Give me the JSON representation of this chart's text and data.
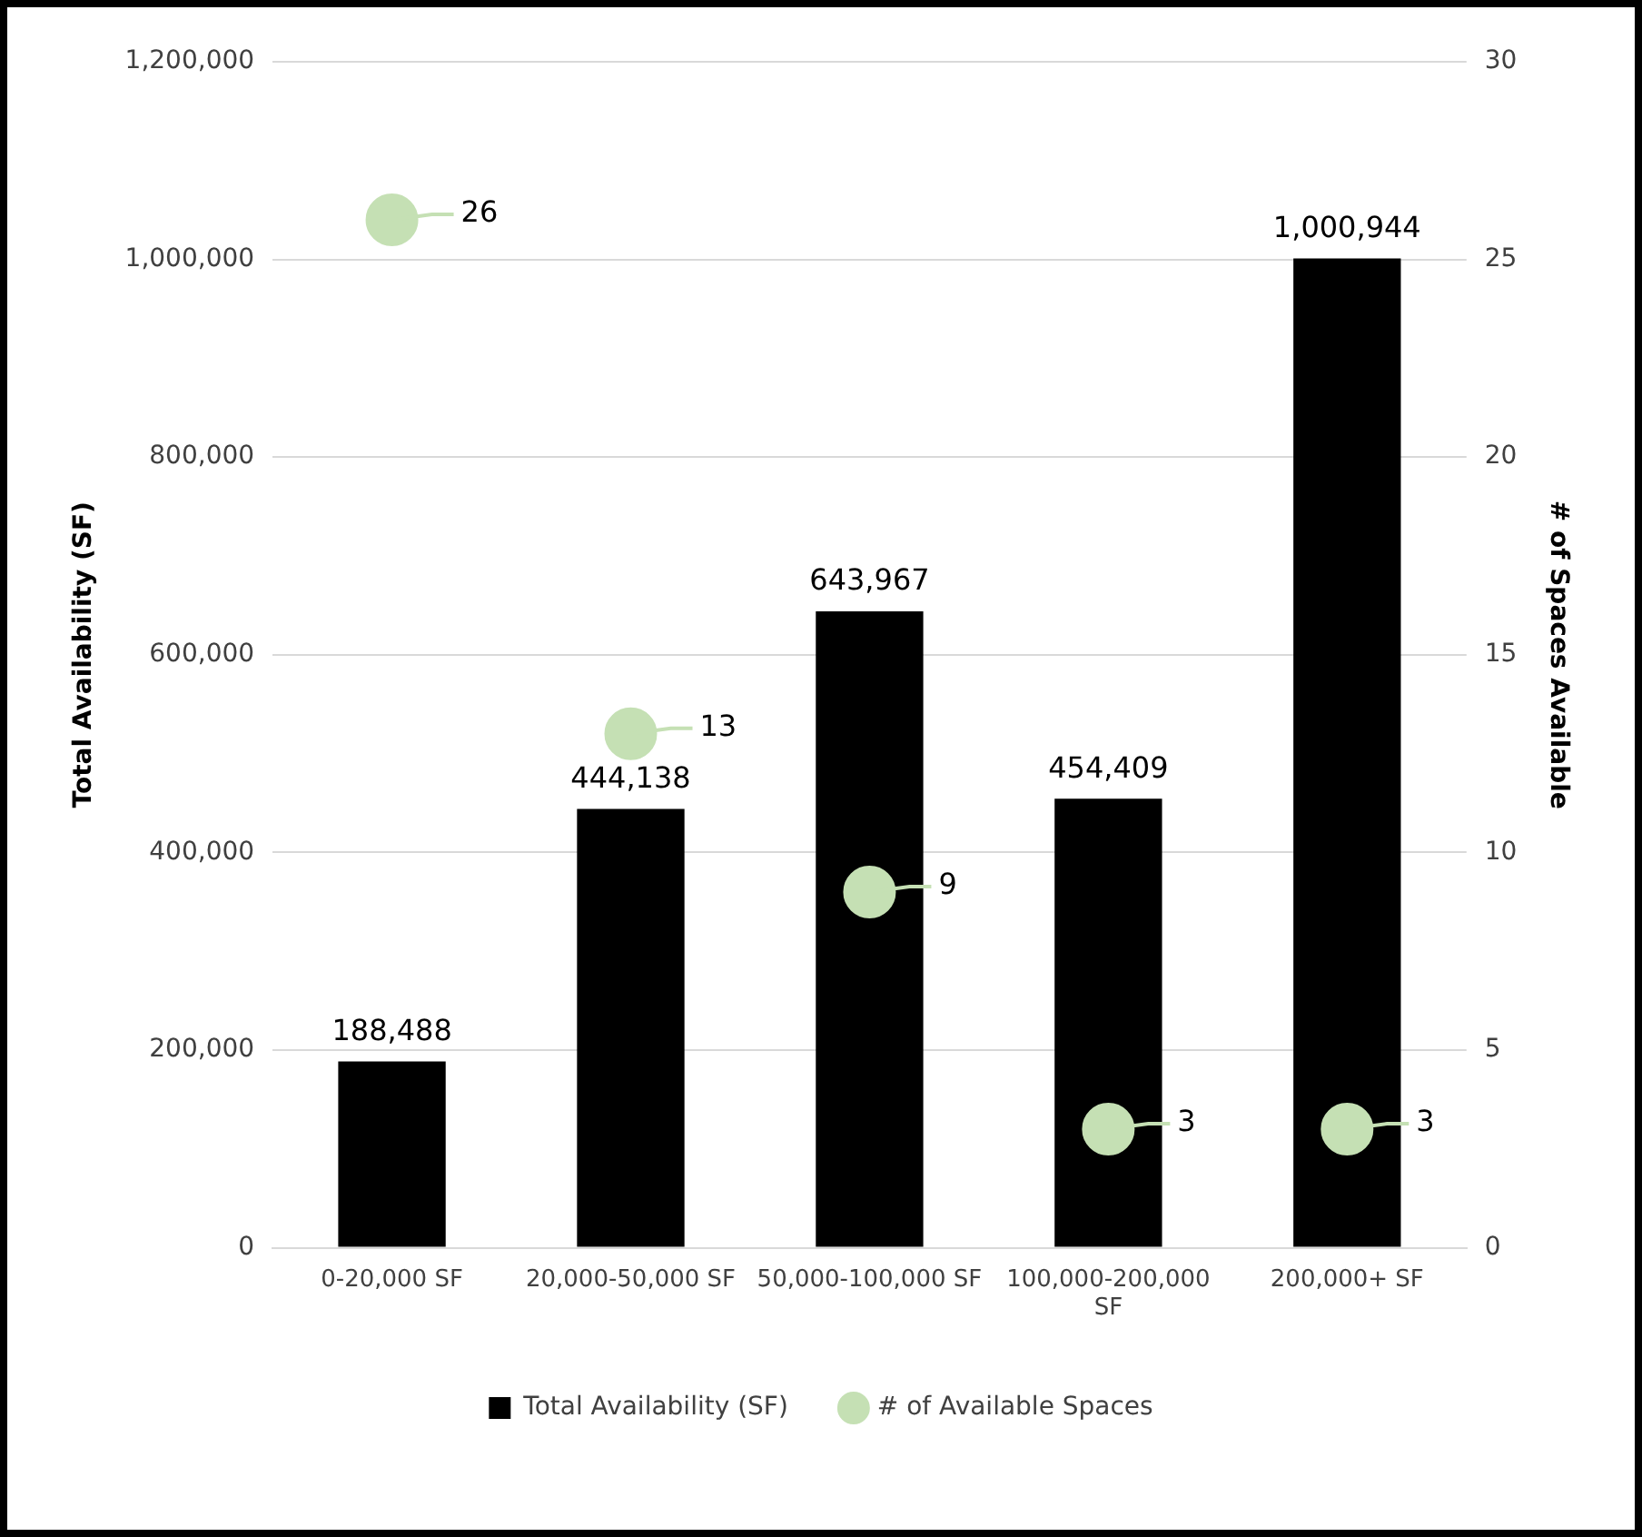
{
  "chart_data": {
    "type": "bar",
    "categories": [
      "0-20,000 SF",
      "20,000-50,000 SF",
      "50,000-100,000 SF",
      "100,000-200,000 SF",
      "200,000+ SF"
    ],
    "series": [
      {
        "name": "Total Availability (SF)",
        "color": "#000000",
        "values": [
          188488,
          444138,
          643967,
          454409,
          1000944
        ],
        "value_labels": [
          "188,488",
          "444,138",
          "643,967",
          "454,409",
          "1,000,944"
        ]
      },
      {
        "name": "# of Available Spaces",
        "type": "scatter",
        "axis": "y2",
        "color": "#c5e0b4",
        "values": [
          26,
          13,
          9,
          3,
          3
        ],
        "value_labels": [
          "26",
          "13",
          "9",
          "3",
          "3"
        ]
      }
    ],
    "ylabel": "Total Availability (SF)",
    "y2label": "# of Spaces Available",
    "ylim": [
      0,
      1200000
    ],
    "yticks": [
      0,
      {
        "value": 200000,
        "label": "200,000"
      },
      {
        "value": 400000,
        "label": "400,000"
      },
      {
        "value": 600000,
        "label": "600,000"
      },
      {
        "value": 800000,
        "label": "800,000"
      },
      {
        "value": 1000000,
        "label": "1,000,000"
      },
      {
        "value": 1200000,
        "label": "1,200,000"
      }
    ],
    "y2lim": [
      0,
      30
    ],
    "y2ticks": [
      0,
      5,
      10,
      15,
      20,
      25,
      30
    ],
    "grid": "y",
    "legend": "bottom",
    "marker": "circle"
  }
}
